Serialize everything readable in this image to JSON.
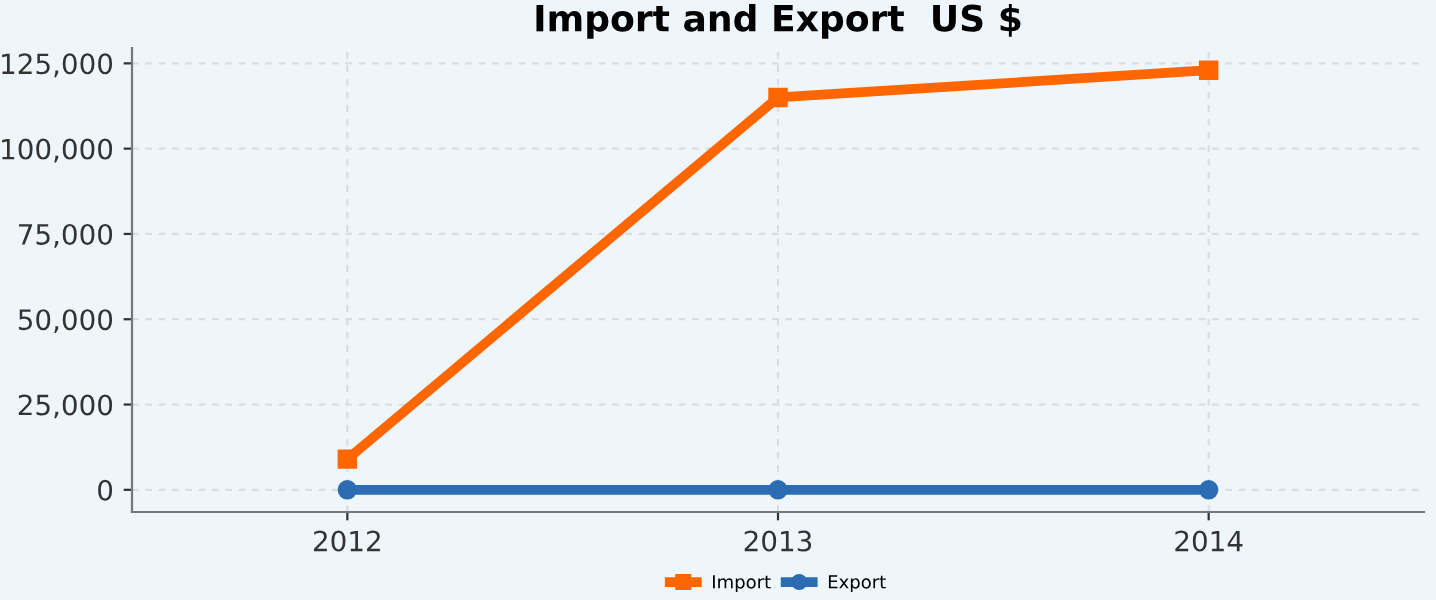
{
  "chart_data": {
    "type": "line",
    "title": "Import and Export  US $",
    "categories": [
      "2012",
      "2013",
      "2014"
    ],
    "series": [
      {
        "name": "Import",
        "color": "#ff6600",
        "values": [
          9000,
          115000,
          123000
        ],
        "marker": "square"
      },
      {
        "name": "Export",
        "color": "#2b6cb3",
        "values": [
          0,
          0,
          0
        ],
        "marker": "circle"
      }
    ],
    "ylim": [
      -6500,
      129500
    ],
    "yticks": [
      {
        "value": 0,
        "label": "0"
      },
      {
        "value": 25000,
        "label": "25,000"
      },
      {
        "value": 50000,
        "label": "50,000"
      },
      {
        "value": 75000,
        "label": "75,000"
      },
      {
        "value": 100000,
        "label": "100,000"
      },
      {
        "value": 125000,
        "label": "125,000"
      }
    ],
    "grid": true,
    "legend": "bottom",
    "line_style": "solid"
  }
}
